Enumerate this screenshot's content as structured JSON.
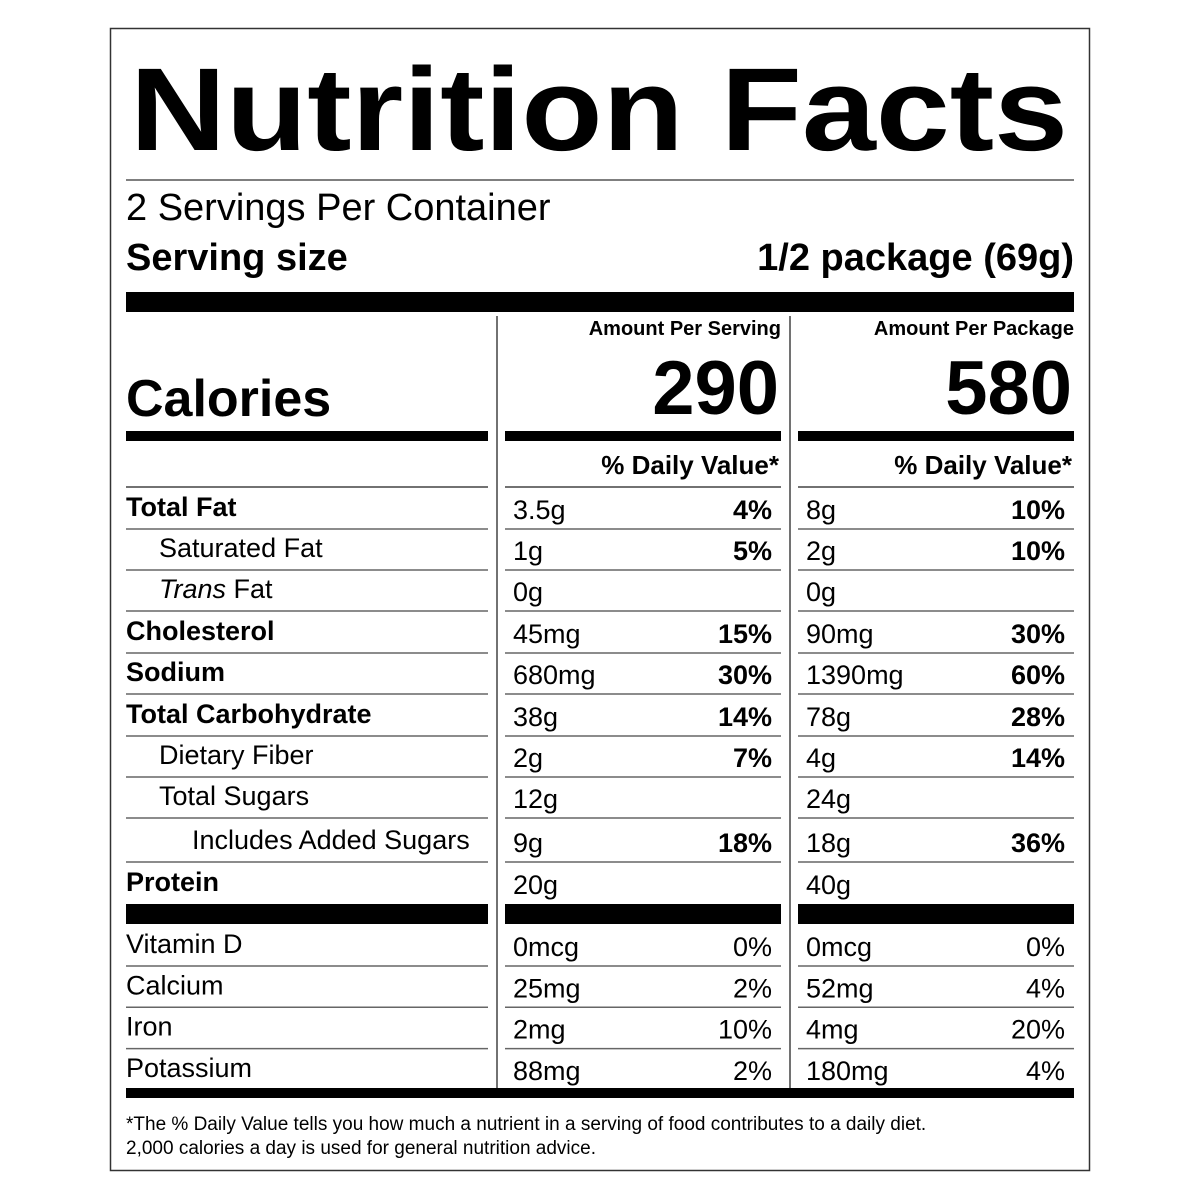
{
  "title": "Nutrition Facts",
  "servings": "2 Servings Per Container",
  "serving_size": {
    "label": "Serving size",
    "value": "1/2 package (69g)"
  },
  "calories_label": "Calories",
  "columns": [
    {
      "heading": "Amount Per Serving",
      "calories": 290,
      "dv_heading": "% Daily Value*"
    },
    {
      "heading": "Amount Per Package",
      "calories": 580,
      "dv_heading": "% Daily Value*"
    }
  ],
  "nutrients": [
    {
      "name": "Total Fat",
      "bold": true,
      "indent": 0,
      "cells": [
        {
          "amount": "3.5g",
          "dv": "4%"
        },
        {
          "amount": "8g",
          "dv": "10%"
        }
      ]
    },
    {
      "name": "Saturated Fat",
      "bold": false,
      "indent": 1,
      "cells": [
        {
          "amount": "1g",
          "dv": "5%"
        },
        {
          "amount": "2g",
          "dv": "10%"
        }
      ]
    },
    {
      "italic_prefix": "Trans",
      "name": "Fat",
      "bold": false,
      "indent": 1,
      "cells": [
        {
          "amount": "0g"
        },
        {
          "amount": "0g"
        }
      ]
    },
    {
      "name": "Cholesterol",
      "bold": true,
      "indent": 0,
      "cells": [
        {
          "amount": "45mg",
          "dv": "15%"
        },
        {
          "amount": "90mg",
          "dv": "30%"
        }
      ]
    },
    {
      "name": "Sodium",
      "bold": true,
      "indent": 0,
      "cells": [
        {
          "amount": "680mg",
          "dv": "30%"
        },
        {
          "amount": "1390mg",
          "dv": "60%"
        }
      ]
    },
    {
      "name": "Total Carbohydrate",
      "bold": true,
      "indent": 0,
      "cells": [
        {
          "amount": "38g",
          "dv": "14%"
        },
        {
          "amount": "78g",
          "dv": "28%"
        }
      ]
    },
    {
      "name": "Dietary Fiber",
      "bold": false,
      "indent": 1,
      "cells": [
        {
          "amount": "2g",
          "dv": "7%"
        },
        {
          "amount": "4g",
          "dv": "14%"
        }
      ]
    },
    {
      "name": "Total Sugars",
      "bold": false,
      "indent": 1,
      "cells": [
        {
          "amount": "12g"
        },
        {
          "amount": "24g"
        }
      ]
    },
    {
      "name": "Includes Added Sugars",
      "bold": false,
      "indent": 2,
      "cells": [
        {
          "amount": "9g",
          "dv": "18%"
        },
        {
          "amount": "18g",
          "dv": "36%"
        }
      ]
    },
    {
      "name": "Protein",
      "bold": true,
      "indent": 0,
      "cells": [
        {
          "amount": "20g"
        },
        {
          "amount": "40g"
        }
      ]
    }
  ],
  "vitamins": [
    {
      "name": "Vitamin D",
      "cells": [
        {
          "amount": "0mcg",
          "dv": "0%"
        },
        {
          "amount": "0mcg",
          "dv": "0%"
        }
      ]
    },
    {
      "name": "Calcium",
      "cells": [
        {
          "amount": "25mg",
          "dv": "2%"
        },
        {
          "amount": "52mg",
          "dv": "4%"
        }
      ]
    },
    {
      "name": "Iron",
      "cells": [
        {
          "amount": "2mg",
          "dv": "10%"
        },
        {
          "amount": "4mg",
          "dv": "20%"
        }
      ]
    },
    {
      "name": "Potassium",
      "cells": [
        {
          "amount": "88mg",
          "dv": "2%"
        },
        {
          "amount": "180mg",
          "dv": "4%"
        }
      ]
    }
  ],
  "footnote": [
    "*The % Daily Value tells you how much a nutrient in a serving of food contributes to a daily diet.",
    "2,000 calories a day is used for general nutrition advice."
  ]
}
